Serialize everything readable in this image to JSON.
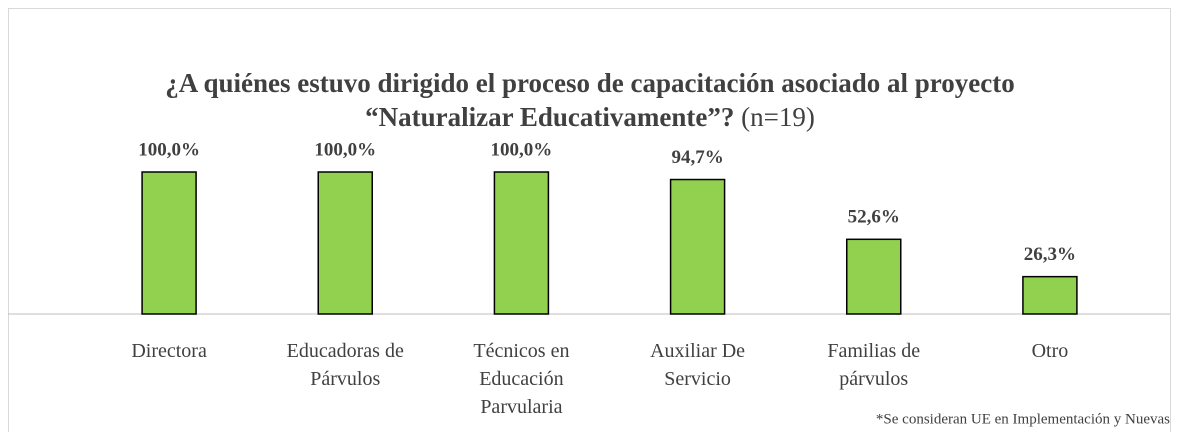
{
  "chart_data": {
    "type": "bar",
    "title": "¿A quiénes estuvo dirigido el proceso de capacitación asociado al proyecto “Naturalizar Educativamente”?",
    "sample_size": "(n=19)",
    "categories": [
      "Directora",
      "Educadoras de\nPárvulos",
      "Técnicos en\nEducación\nParvularia",
      "Auxiliar De\nServicio",
      "Familias de\npárvulos",
      "Otro"
    ],
    "values": [
      100,
      100,
      100,
      94.7,
      52.6,
      26.3
    ],
    "value_labels": [
      "100,0%",
      "100,0%",
      "100,0%",
      "94,7%",
      "52,6%",
      "26,3%"
    ],
    "color": "#92d050",
    "ylim": [
      0,
      100
    ],
    "note": "*Se consideran UE en Implementación y Nuevas"
  }
}
